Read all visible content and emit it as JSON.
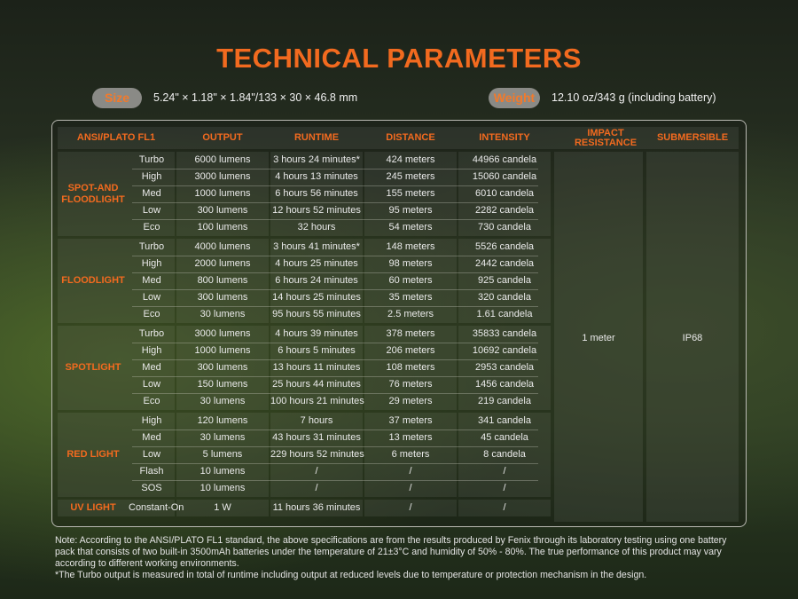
{
  "title": "TECHNICAL PARAMETERS",
  "specs": [
    {
      "label": "Size",
      "value": "5.24\" × 1.18\" × 1.84\"/133 × 30 × 46.8 mm"
    },
    {
      "label": "Weight",
      "value": "12.10 oz/343 g (including battery)"
    }
  ],
  "table": {
    "headers": [
      "ANSI/PLATO FL1",
      "OUTPUT",
      "RUNTIME",
      "DISTANCE",
      "INTENSITY",
      "IMPACT RESISTANCE",
      "SUBMERSIBLE"
    ],
    "groups": [
      {
        "name": "SPOT-AND FLOODLIGHT",
        "rows": [
          [
            "Turbo",
            "6000 lumens",
            "3 hours 24 minutes*",
            "424 meters",
            "44966 candela"
          ],
          [
            "High",
            "3000 lumens",
            "4 hours 13 minutes",
            "245 meters",
            "15060 candela"
          ],
          [
            "Med",
            "1000 lumens",
            "6 hours 56 minutes",
            "155 meters",
            "6010 candela"
          ],
          [
            "Low",
            "300 lumens",
            "12 hours 52 minutes",
            "95 meters",
            "2282 candela"
          ],
          [
            "Eco",
            "100 lumens",
            "32 hours",
            "54 meters",
            "730 candela"
          ]
        ]
      },
      {
        "name": "FLOODLIGHT",
        "rows": [
          [
            "Turbo",
            "4000 lumens",
            "3 hours 41 minutes*",
            "148 meters",
            "5526 candela"
          ],
          [
            "High",
            "2000 lumens",
            "4 hours 25 minutes",
            "98 meters",
            "2442 candela"
          ],
          [
            "Med",
            "800 lumens",
            "6 hours 24 minutes",
            "60 meters",
            "925 candela"
          ],
          [
            "Low",
            "300 lumens",
            "14 hours 25 minutes",
            "35 meters",
            "320 candela"
          ],
          [
            "Eco",
            "30 lumens",
            "95 hours 55 minutes",
            "2.5 meters",
            "1.61 candela"
          ]
        ]
      },
      {
        "name": "SPOTLIGHT",
        "rows": [
          [
            "Turbo",
            "3000 lumens",
            "4 hours 39 minutes",
            "378 meters",
            "35833 candela"
          ],
          [
            "High",
            "1000 lumens",
            "6 hours 5 minutes",
            "206 meters",
            "10692  candela"
          ],
          [
            "Med",
            "300 lumens",
            "13 hours 11 minutes",
            "108 meters",
            "2953 candela"
          ],
          [
            "Low",
            "150 lumens",
            "25 hours 44 minutes",
            "76 meters",
            "1456 candela"
          ],
          [
            "Eco",
            "30 lumens",
            "100 hours 21 minutes",
            "29 meters",
            "219 candela"
          ]
        ]
      },
      {
        "name": "RED LIGHT",
        "rows": [
          [
            "High",
            "120 lumens",
            "7 hours",
            "37 meters",
            "341 candela"
          ],
          [
            "Med",
            "30 lumens",
            "43 hours 31 minutes",
            "13 meters",
            "45 candela"
          ],
          [
            "Low",
            "5 lumens",
            "229 hours 52 minutes",
            "6 meters",
            "8 candela"
          ],
          [
            "Flash",
            "10 lumens",
            "/",
            "/",
            "/"
          ],
          [
            "SOS",
            "10 lumens",
            "/",
            "/",
            "/"
          ]
        ]
      },
      {
        "name": "UV LIGHT",
        "rows": [
          [
            "Constant-On",
            "1 W",
            "11 hours 36 minutes",
            "/",
            "/"
          ]
        ]
      }
    ],
    "impact_resistance": "1 meter",
    "submersible": "IP68"
  },
  "notes": [
    "Note: According to the ANSI/PLATO FL1 standard, the above specifications are from the results produced by Fenix through its laboratory testing using one battery pack that consists of two built-in 3500mAh batteries under the temperature of 21±3°C and humidity of 50% - 80%. The true performance of this product may vary according to different working environments.",
    "*The Turbo output is measured in total of runtime including output at reduced levels due to temperature or protection mechanism in the design."
  ]
}
